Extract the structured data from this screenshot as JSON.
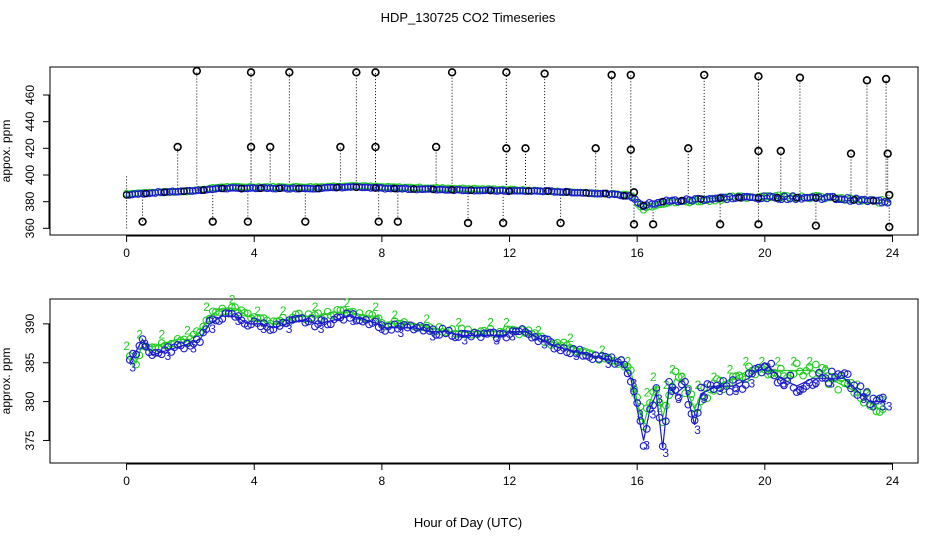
{
  "title": "HDP_130725  CO2 Timeseries",
  "xlabel": "Hour of Day (UTC)",
  "colors": {
    "raw": "#000000",
    "series2": "#22cc22",
    "series3": "#1a1acc"
  },
  "chart_data": [
    {
      "type": "scatter",
      "panel": "top",
      "title": "HDP_130725  CO2 Timeseries",
      "xlabel": "",
      "ylabel": "appox. ppm",
      "xlim": [
        -2.4,
        24.8
      ],
      "ylim": [
        355,
        481
      ],
      "xticks": [
        0,
        4,
        8,
        12,
        16,
        20,
        24
      ],
      "yticks": [
        360,
        380,
        400,
        420,
        440,
        460
      ],
      "spike_series": {
        "name": "raw calibration spikes",
        "x": [
          1.6,
          2.2,
          3.9,
          3.9,
          4.5,
          5.1,
          6.7,
          7.2,
          7.8,
          7.8,
          9.7,
          10.2,
          11.9,
          11.9,
          12.5,
          13.1,
          14.7,
          15.2,
          15.8,
          15.8,
          15.9,
          17.6,
          18.1,
          19.8,
          19.8,
          20.5,
          21.1,
          22.7,
          23.2,
          23.8,
          23.85,
          23.9
        ],
        "y": [
          421,
          478,
          477,
          421,
          421,
          477,
          421,
          477,
          477,
          421,
          421,
          477,
          477,
          420,
          420,
          476,
          420,
          475,
          475,
          419,
          387,
          420,
          475,
          474,
          418,
          418,
          473,
          416,
          471,
          472,
          416,
          385
        ],
        "dips_x": [
          0.5,
          2.7,
          3.8,
          5.6,
          7.9,
          8.5,
          10.7,
          11.8,
          13.6,
          15.9,
          16.5,
          18.6,
          19.8,
          21.6,
          23.9
        ],
        "dips_y": [
          365,
          365,
          365,
          365,
          365,
          365,
          364,
          364,
          364,
          363,
          363,
          363,
          363,
          362,
          361
        ]
      },
      "series": [
        {
          "name": "2",
          "points": [
            [
              0,
              386
            ],
            [
              1,
              387
            ],
            [
              2,
              388
            ],
            [
              3,
              391
            ],
            [
              4,
              391
            ],
            [
              5,
              391
            ],
            [
              6,
              391
            ],
            [
              7,
              392
            ],
            [
              8,
              391
            ],
            [
              10,
              390
            ],
            [
              12,
              389
            ],
            [
              13,
              388
            ],
            [
              14,
              387
            ],
            [
              15,
              386
            ],
            [
              15.8,
              385
            ],
            [
              16.2,
              375
            ],
            [
              16.7,
              379
            ],
            [
              17.5,
              380
            ],
            [
              18,
              381
            ],
            [
              19,
              383
            ],
            [
              20,
              384
            ],
            [
              21,
              384
            ],
            [
              22,
              383
            ],
            [
              23,
              381
            ],
            [
              23.8,
              380
            ]
          ]
        },
        {
          "name": "3",
          "points": [
            [
              0,
              385
            ],
            [
              1,
              387
            ],
            [
              2,
              388
            ],
            [
              3,
              390
            ],
            [
              4,
              390
            ],
            [
              5,
              390
            ],
            [
              6,
              390
            ],
            [
              7,
              391
            ],
            [
              8,
              390
            ],
            [
              10,
              389
            ],
            [
              12,
              388
            ],
            [
              13,
              388
            ],
            [
              14,
              387
            ],
            [
              15,
              386
            ],
            [
              15.8,
              384
            ],
            [
              16.2,
              377
            ],
            [
              16.7,
              380
            ],
            [
              17.5,
              381
            ],
            [
              18,
              382
            ],
            [
              19,
              383
            ],
            [
              20,
              383
            ],
            [
              21,
              383
            ],
            [
              22,
              383
            ],
            [
              23,
              381
            ],
            [
              23.8,
              380
            ]
          ]
        }
      ]
    },
    {
      "type": "line",
      "panel": "bottom",
      "xlabel": "Hour of Day (UTC)",
      "ylabel": "approx. ppm",
      "xlim": [
        -2.4,
        24.8
      ],
      "ylim": [
        372.1,
        393.2
      ],
      "xticks": [
        0,
        4,
        8,
        12,
        16,
        20,
        24
      ],
      "yticks": [
        375,
        380,
        385,
        390
      ],
      "series": [
        {
          "name": "2",
          "label_char": "2",
          "points": [
            [
              0.1,
              386
            ],
            [
              0.3,
              385
            ],
            [
              0.5,
              387.5
            ],
            [
              0.8,
              387
            ],
            [
              1.2,
              387.5
            ],
            [
              1.6,
              388
            ],
            [
              2.0,
              388
            ],
            [
              2.3,
              389
            ],
            [
              2.6,
              391
            ],
            [
              3.0,
              392
            ],
            [
              3.4,
              392
            ],
            [
              3.8,
              391
            ],
            [
              4.2,
              390.5
            ],
            [
              4.6,
              390
            ],
            [
              5.0,
              390.5
            ],
            [
              5.5,
              391
            ],
            [
              6.0,
              391
            ],
            [
              6.5,
              391.5
            ],
            [
              7.0,
              391.5
            ],
            [
              7.5,
              391
            ],
            [
              7.9,
              391
            ],
            [
              8.0,
              390
            ],
            [
              8.5,
              390
            ],
            [
              9.0,
              390
            ],
            [
              9.5,
              389.5
            ],
            [
              10.0,
              389
            ],
            [
              10.5,
              389
            ],
            [
              11.0,
              389
            ],
            [
              11.5,
              389
            ],
            [
              11.9,
              389
            ],
            [
              12.0,
              389
            ],
            [
              12.5,
              389
            ],
            [
              13.0,
              388
            ],
            [
              13.5,
              387.5
            ],
            [
              14.0,
              387
            ],
            [
              14.5,
              386
            ],
            [
              15.0,
              385.5
            ],
            [
              15.5,
              385
            ],
            [
              15.8,
              384
            ],
            [
              16.0,
              380
            ],
            [
              16.2,
              377
            ],
            [
              16.4,
              380
            ],
            [
              16.6,
              382
            ],
            [
              16.8,
              378
            ],
            [
              17.0,
              381
            ],
            [
              17.2,
              383
            ],
            [
              17.5,
              382
            ],
            [
              17.8,
              379
            ],
            [
              18.0,
              381
            ],
            [
              18.5,
              382
            ],
            [
              19.0,
              383
            ],
            [
              19.5,
              384
            ],
            [
              20.0,
              384
            ],
            [
              20.5,
              384
            ],
            [
              21.0,
              384
            ],
            [
              21.5,
              384
            ],
            [
              22.0,
              383
            ],
            [
              22.5,
              382
            ],
            [
              23.0,
              381
            ],
            [
              23.3,
              380
            ],
            [
              23.6,
              379
            ],
            [
              23.8,
              379
            ]
          ]
        },
        {
          "name": "3",
          "label_char": "3",
          "points": [
            [
              0.1,
              385
            ],
            [
              0.3,
              386.5
            ],
            [
              0.5,
              388
            ],
            [
              0.8,
              386
            ],
            [
              1.2,
              386.5
            ],
            [
              1.6,
              387
            ],
            [
              2.0,
              387.5
            ],
            [
              2.3,
              388
            ],
            [
              2.6,
              390
            ],
            [
              3.0,
              391
            ],
            [
              3.4,
              391
            ],
            [
              3.8,
              390
            ],
            [
              4.2,
              390
            ],
            [
              4.6,
              389.5
            ],
            [
              5.0,
              390
            ],
            [
              5.5,
              390.5
            ],
            [
              6.0,
              390
            ],
            [
              6.5,
              390.5
            ],
            [
              7.0,
              391
            ],
            [
              7.5,
              390.5
            ],
            [
              7.9,
              390
            ],
            [
              8.0,
              389.5
            ],
            [
              8.5,
              389.5
            ],
            [
              9.0,
              389.5
            ],
            [
              9.5,
              389
            ],
            [
              10.0,
              389
            ],
            [
              10.5,
              388.5
            ],
            [
              11.0,
              388.5
            ],
            [
              11.5,
              388.5
            ],
            [
              11.9,
              388.5
            ],
            [
              12.0,
              389
            ],
            [
              12.5,
              389
            ],
            [
              13.0,
              388
            ],
            [
              13.5,
              387
            ],
            [
              14.0,
              386.5
            ],
            [
              14.5,
              386
            ],
            [
              15.0,
              385.5
            ],
            [
              15.5,
              385
            ],
            [
              15.8,
              383
            ],
            [
              16.0,
              379
            ],
            [
              16.2,
              375
            ],
            [
              16.4,
              379
            ],
            [
              16.6,
              381
            ],
            [
              16.8,
              374
            ],
            [
              17.0,
              382
            ],
            [
              17.2,
              381
            ],
            [
              17.5,
              382
            ],
            [
              17.8,
              377
            ],
            [
              18.0,
              381
            ],
            [
              18.5,
              382
            ],
            [
              19.0,
              382
            ],
            [
              19.5,
              383
            ],
            [
              20.0,
              385
            ],
            [
              20.5,
              383
            ],
            [
              21.0,
              382
            ],
            [
              21.5,
              383
            ],
            [
              22.0,
              383
            ],
            [
              22.5,
              383
            ],
            [
              23.0,
              381
            ],
            [
              23.3,
              380
            ],
            [
              23.6,
              380
            ],
            [
              23.8,
              380
            ]
          ]
        }
      ]
    }
  ]
}
